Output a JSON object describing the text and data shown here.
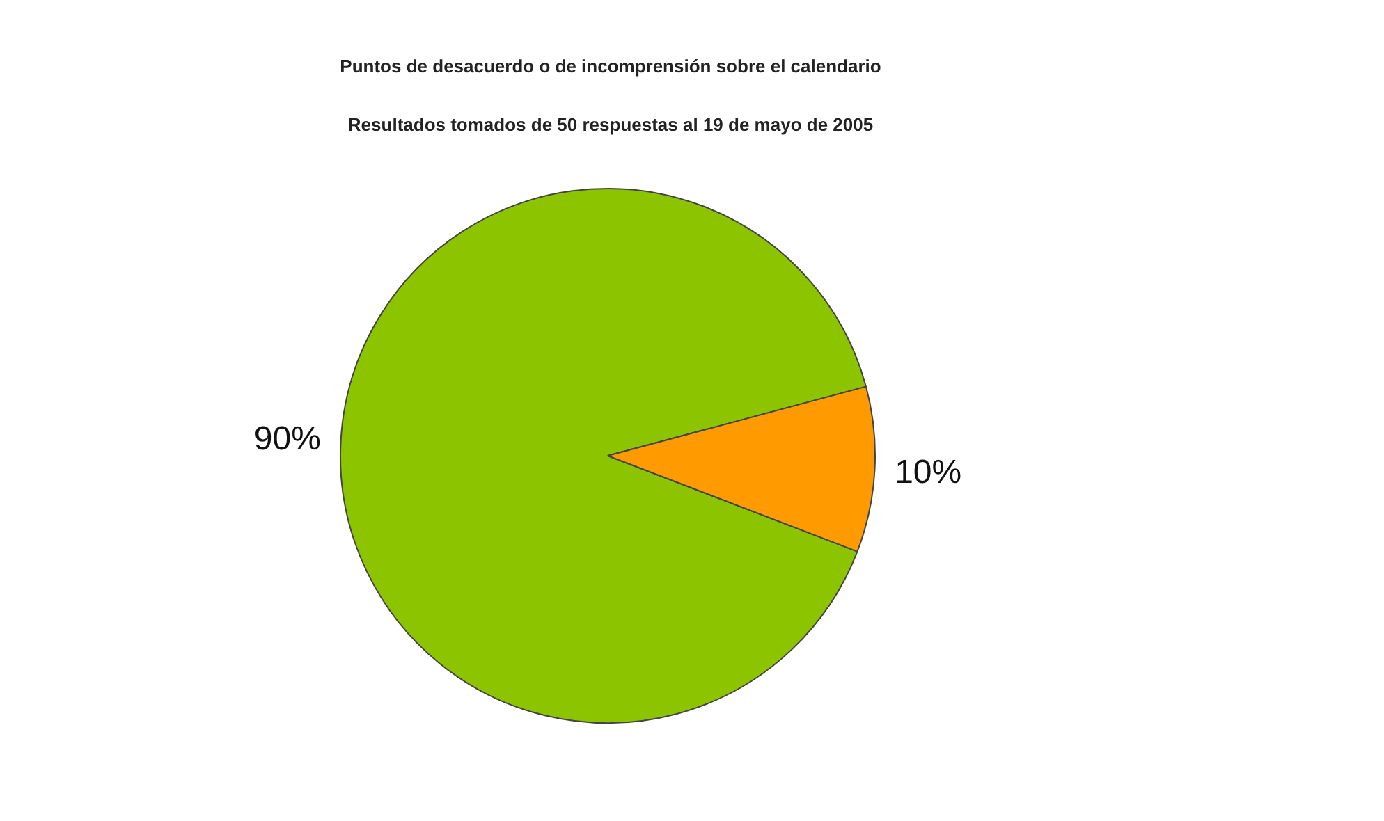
{
  "chart_data": {
    "type": "pie",
    "title": "Puntos de desacuerdo o de incomprensión sobre el calendario",
    "subtitle": "Resultados tomados de 50 respuestas al 19 de mayo de 2005",
    "categories": [
      null,
      null
    ],
    "values": [
      90,
      10
    ],
    "colors": [
      "#8cc400",
      "#ff9a00"
    ],
    "value_labels": [
      "90%",
      "10%"
    ]
  }
}
